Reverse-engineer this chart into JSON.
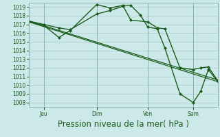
{
  "title": "Pression niveau de la mer( hPa )",
  "background_color": "#cce8e8",
  "grid_color": "#aacccc",
  "line_color": "#1a5c1a",
  "ylim": [
    1007.5,
    1019.5
  ],
  "yticks": [
    1008,
    1009,
    1010,
    1011,
    1012,
    1013,
    1014,
    1015,
    1016,
    1017,
    1018,
    1019
  ],
  "xtick_labels": [
    "Jeu",
    "Dim",
    "Ven",
    "Sam"
  ],
  "xtick_positions": [
    0.08,
    0.36,
    0.63,
    0.87
  ],
  "series": [
    {
      "x": [
        0.0,
        0.08,
        0.16,
        0.22,
        0.36,
        0.43,
        0.5,
        0.54,
        0.59,
        0.63,
        0.68,
        0.72,
        0.8,
        0.87,
        0.91,
        0.95,
        1.0
      ],
      "y": [
        1017.3,
        1016.9,
        1015.5,
        1016.3,
        1019.3,
        1018.9,
        1019.2,
        1019.2,
        1018.1,
        1016.7,
        1016.5,
        1014.3,
        1009.0,
        1008.0,
        1009.3,
        1011.8,
        1010.4
      ],
      "marker": "D",
      "markersize": 2.0,
      "linewidth": 1.0
    },
    {
      "x": [
        0.0,
        1.0
      ],
      "y": [
        1017.3,
        1010.4
      ],
      "marker": null,
      "markersize": 0,
      "linewidth": 0.9
    },
    {
      "x": [
        0.0,
        1.0
      ],
      "y": [
        1017.4,
        1010.6
      ],
      "marker": null,
      "markersize": 0,
      "linewidth": 0.9
    },
    {
      "x": [
        0.0,
        0.08,
        0.16,
        0.22,
        0.36,
        0.43,
        0.5,
        0.54,
        0.63,
        0.68,
        0.72,
        0.8,
        0.87,
        0.91,
        0.95,
        1.0
      ],
      "y": [
        1017.4,
        1017.0,
        1016.6,
        1016.4,
        1018.2,
        1018.6,
        1019.1,
        1017.5,
        1017.3,
        1016.6,
        1016.5,
        1012.0,
        1011.8,
        1012.0,
        1012.1,
        1010.5
      ],
      "marker": "D",
      "markersize": 2.0,
      "linewidth": 1.0
    }
  ],
  "tick_fontsize": 5.5,
  "xlabel_fontsize": 8.5,
  "tick_color": "#1a5c1a",
  "label_color": "#1a5c1a"
}
